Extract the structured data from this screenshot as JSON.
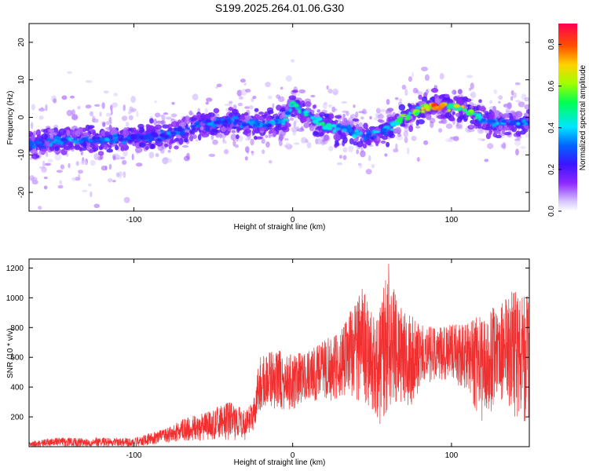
{
  "chart_data": [
    {
      "type": "heatmap",
      "title": "S199.2025.264.01.06.G30",
      "xlabel": "Height of straight line (km)",
      "ylabel": "Frequency (Hz)",
      "xlim": [
        -166,
        149
      ],
      "ylim": [
        -25,
        25
      ],
      "xticks": [
        -100,
        0,
        100
      ],
      "xtick_labels": [
        "-100",
        "0",
        "100"
      ],
      "yticks": [
        -20,
        -10,
        0,
        10,
        20
      ],
      "ytick_labels": [
        "-20",
        "-10",
        "0",
        "10",
        "20"
      ],
      "colorbar": {
        "label": "Normalized spectral amplitude",
        "range": [
          0.0,
          0.9
        ],
        "ticks": [
          0.0,
          0.2,
          0.4,
          0.6,
          0.8
        ],
        "tick_labels": [
          "0.0",
          "0.2",
          "0.4",
          "0.6",
          "0.8"
        ]
      },
      "ridge": {
        "description": "dominant frequency ridge",
        "x": [
          -160,
          -140,
          -120,
          -100,
          -80,
          -60,
          -40,
          -20,
          -5,
          0,
          10,
          20,
          30,
          40,
          50,
          60,
          70,
          80,
          90,
          100,
          110,
          120,
          130,
          140,
          149
        ],
        "freq": [
          -7,
          -6,
          -6,
          -5.5,
          -5,
          -2,
          -1,
          -2,
          -1,
          4,
          0,
          -2,
          -3,
          -4,
          -5,
          -3,
          0,
          2,
          3,
          3,
          2,
          -1,
          -1.5,
          -1.5,
          -1
        ],
        "peak_amplitude": [
          0.35,
          0.4,
          0.4,
          0.35,
          0.4,
          0.4,
          0.35,
          0.4,
          0.45,
          0.55,
          0.5,
          0.5,
          0.4,
          0.45,
          0.4,
          0.5,
          0.6,
          0.7,
          0.88,
          0.8,
          0.7,
          0.45,
          0.45,
          0.4,
          0.4
        ]
      }
    },
    {
      "type": "line",
      "title": "",
      "xlabel": "Height of straight line (km)",
      "ylabel": "SNR (10 * v/v)",
      "xlim": [
        -166,
        149
      ],
      "ylim": [
        0,
        1260
      ],
      "xticks": [
        -100,
        0,
        100
      ],
      "xtick_labels": [
        "-100",
        "0",
        "100"
      ],
      "yticks": [
        200,
        400,
        600,
        800,
        1000,
        1200
      ],
      "ytick_labels": [
        "200",
        "400",
        "600",
        "800",
        "1000",
        "1200"
      ],
      "series": [
        {
          "name": "SNR",
          "color": "#f03030",
          "envelope_x": [
            -166,
            -150,
            -140,
            -120,
            -100,
            -90,
            -80,
            -70,
            -60,
            -50,
            -40,
            -30,
            -25,
            -22,
            -20,
            -10,
            0,
            10,
            20,
            30,
            35,
            40,
            45,
            50,
            55,
            60,
            65,
            70,
            75,
            80,
            90,
            100,
            110,
            120,
            130,
            140,
            149
          ],
          "envelope_min": [
            0,
            0,
            0,
            0,
            0,
            10,
            20,
            40,
            40,
            50,
            40,
            40,
            100,
            200,
            250,
            250,
            250,
            300,
            300,
            320,
            300,
            300,
            300,
            250,
            150,
            250,
            300,
            300,
            250,
            400,
            450,
            450,
            350,
            150,
            300,
            200,
            150
          ],
          "envelope_max": [
            30,
            60,
            60,
            60,
            60,
            90,
            120,
            180,
            220,
            250,
            300,
            250,
            300,
            550,
            620,
            650,
            620,
            640,
            720,
            760,
            900,
            1000,
            1100,
            900,
            950,
            1260,
            1000,
            900,
            880,
            820,
            800,
            820,
            830,
            900,
            960,
            1060,
            1000
          ]
        }
      ]
    }
  ]
}
